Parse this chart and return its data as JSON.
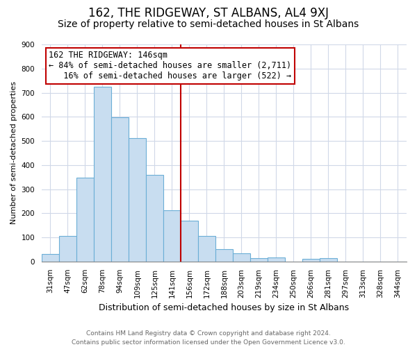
{
  "title": "162, THE RIDGEWAY, ST ALBANS, AL4 9XJ",
  "subtitle": "Size of property relative to semi-detached houses in St Albans",
  "xlabel": "Distribution of semi-detached houses by size in St Albans",
  "ylabel": "Number of semi-detached properties",
  "bar_labels": [
    "31sqm",
    "47sqm",
    "62sqm",
    "78sqm",
    "94sqm",
    "109sqm",
    "125sqm",
    "141sqm",
    "156sqm",
    "172sqm",
    "188sqm",
    "203sqm",
    "219sqm",
    "234sqm",
    "250sqm",
    "266sqm",
    "281sqm",
    "297sqm",
    "313sqm",
    "328sqm",
    "344sqm"
  ],
  "bar_values": [
    30,
    105,
    348,
    725,
    597,
    512,
    358,
    212,
    168,
    107,
    52,
    35,
    13,
    17,
    0,
    12,
    13,
    0,
    0,
    0,
    0
  ],
  "bar_color": "#c8ddf0",
  "bar_edge_color": "#6baed6",
  "property_label": "162 THE RIDGEWAY: 146sqm",
  "smaller_pct": 84,
  "smaller_count": 2711,
  "larger_pct": 16,
  "larger_count": 522,
  "vline_x_index": 7.5,
  "vline_color": "#c00000",
  "annotation_box_edge_color": "#c00000",
  "footer_line1": "Contains HM Land Registry data © Crown copyright and database right 2024.",
  "footer_line2": "Contains public sector information licensed under the Open Government Licence v3.0.",
  "ylim": [
    0,
    900
  ],
  "yticks": [
    0,
    100,
    200,
    300,
    400,
    500,
    600,
    700,
    800,
    900
  ],
  "grid_color": "#d0d8e8",
  "background_color": "#ffffff",
  "title_fontsize": 12,
  "subtitle_fontsize": 10,
  "annotation_fontsize": 8.5,
  "footer_fontsize": 6.5,
  "ylabel_fontsize": 8,
  "xlabel_fontsize": 9,
  "tick_fontsize": 7.5
}
